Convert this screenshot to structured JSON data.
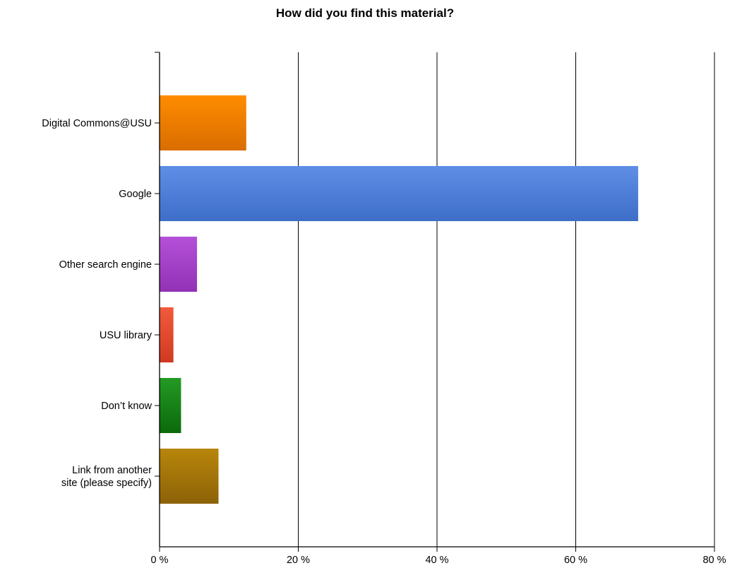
{
  "chart_data": {
    "type": "bar",
    "orientation": "horizontal",
    "title": "How did you find this material?",
    "categories": [
      "Digital Commons@USU",
      "Google",
      "Other search engine",
      "USU library",
      "Don’t know",
      "Link from another site (please specify)"
    ],
    "category_label_lines": [
      [
        "Digital Commons@USU"
      ],
      [
        "Google"
      ],
      [
        "Other search engine"
      ],
      [
        "USU library"
      ],
      [
        "Don’t know"
      ],
      [
        "Link from another",
        "site (please specify)"
      ]
    ],
    "values": [
      12.5,
      69.0,
      5.4,
      2.0,
      3.1,
      8.5
    ],
    "colors": [
      [
        "#ff8c00",
        "#d96d00"
      ],
      [
        "#5f8ee6",
        "#3d6ec8"
      ],
      [
        "#b450d8",
        "#9232b5"
      ],
      [
        "#f25a3c",
        "#d03a20"
      ],
      [
        "#239a23",
        "#0b6a0b"
      ],
      [
        "#b8860b",
        "#8c6208"
      ]
    ],
    "xlim": [
      0,
      80
    ],
    "x_ticks": [
      0,
      20,
      40,
      60,
      80
    ],
    "x_tick_labels": [
      "0 %",
      "20 %",
      "40 %",
      "60 %",
      "80 %"
    ],
    "xlabel": "",
    "ylabel": "",
    "grid": "vertical",
    "legend": "none"
  }
}
